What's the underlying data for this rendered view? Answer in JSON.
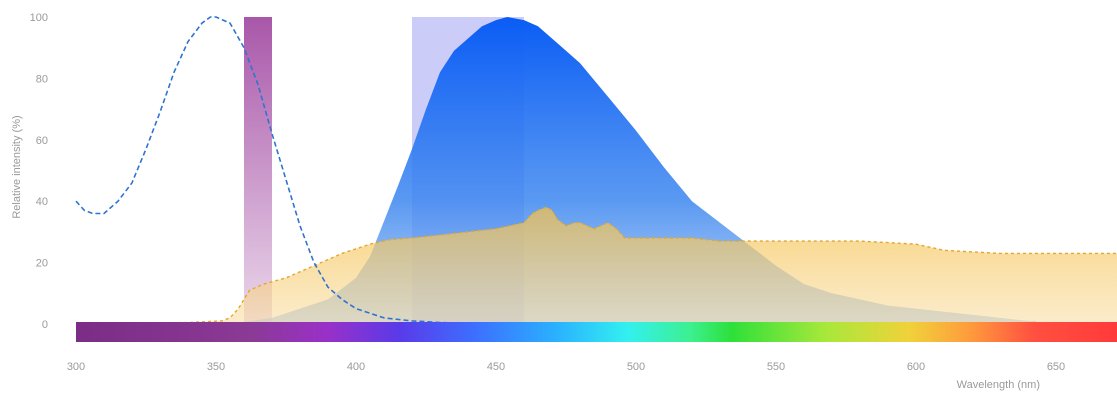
{
  "chart_data": {
    "type": "area",
    "xlabel": "Wavelength (nm)",
    "ylabel": "Relative intensity (%)",
    "xlim": [
      300,
      672
    ],
    "ylim": [
      0,
      100
    ],
    "x_ticks": [
      "300",
      "350",
      "400",
      "450",
      "500",
      "550",
      "600",
      "650"
    ],
    "y_ticks": [
      "0",
      "20",
      "40",
      "60",
      "80",
      "100"
    ],
    "grid": false,
    "spectrum_bar": true,
    "filter_bands": [
      {
        "range": [
          360,
          370
        ],
        "color": "#9a3a9a"
      },
      {
        "range": [
          420,
          460
        ],
        "color": "#8e8ef0"
      }
    ],
    "series": [
      {
        "style": "dashed-line",
        "color": "#2f74d0",
        "x": [
          300,
          303,
          306,
          310,
          315,
          320,
          325,
          330,
          335,
          340,
          345,
          348,
          350,
          355,
          360,
          365,
          370,
          375,
          380,
          385,
          390,
          395,
          400,
          410,
          420,
          430,
          440,
          450
        ],
        "y": [
          40,
          37,
          36,
          36,
          40,
          46,
          57,
          69,
          82,
          92,
          98,
          100,
          100,
          98,
          90,
          78,
          62,
          47,
          32,
          20,
          12,
          8,
          5,
          2,
          1,
          0.5,
          0.2,
          0.1
        ]
      },
      {
        "style": "filled-area",
        "color": "#1e6ff0",
        "x": [
          355,
          370,
          390,
          400,
          405,
          415,
          420,
          425,
          430,
          435,
          440,
          445,
          450,
          454,
          460,
          465,
          470,
          475,
          480,
          490,
          500,
          510,
          520,
          530,
          540,
          550,
          560,
          570,
          580,
          590,
          600,
          610,
          620,
          630,
          640,
          643
        ],
        "y": [
          0,
          2,
          8,
          15,
          22,
          45,
          57,
          70,
          82,
          89,
          93,
          97,
          99,
          100,
          99,
          97,
          93,
          89,
          85,
          74,
          63,
          51,
          40,
          33,
          26,
          19,
          13,
          10,
          8,
          6,
          5,
          4,
          3,
          2,
          1,
          1
        ]
      },
      {
        "style": "filled-area-dashed-top",
        "color": "#f4c24a",
        "x": [
          300,
          340,
          352,
          355,
          358,
          360,
          362,
          367,
          375,
          385,
          395,
          405,
          412,
          420,
          430,
          440,
          450,
          460,
          463,
          465,
          468,
          470,
          472,
          475,
          478,
          480,
          485,
          490,
          493,
          496,
          498,
          500,
          510,
          520,
          530,
          540,
          550,
          560,
          570,
          580,
          590,
          600,
          610,
          620,
          630,
          640,
          650,
          660,
          672
        ],
        "y": [
          0,
          0.5,
          1,
          2,
          5,
          8,
          11,
          13,
          15,
          19,
          23,
          26,
          27.5,
          28,
          29,
          30,
          31,
          33,
          36,
          37,
          38,
          37,
          34,
          32,
          33,
          33,
          31,
          33,
          31,
          28,
          28,
          28,
          28,
          28,
          27,
          27,
          27,
          27,
          27,
          27,
          26.5,
          26,
          24,
          23.5,
          23,
          23,
          23,
          23,
          23
        ]
      }
    ]
  },
  "colors": {
    "axis_text": "#9a9a9a",
    "emission_blue": "#1e6ff0",
    "absorption_yellow": "#f4c24a",
    "excitation_dashed": "#2f74d0",
    "band_violet": "#9a3a9a",
    "band_blue": "#8e8ef0"
  }
}
